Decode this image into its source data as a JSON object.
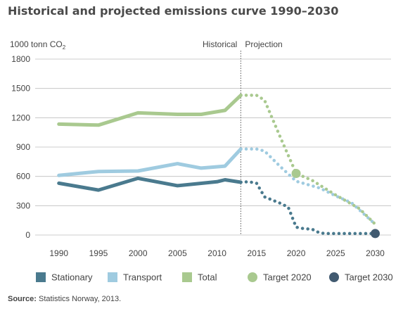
{
  "title": "Historical and projected emissions curve 1990–2030",
  "source_label": "Source:",
  "source_text": "Statistics Norway, 2013.",
  "chart_data": {
    "type": "line",
    "title": "Historical and projected emissions curve 1990–2030",
    "ylabel_main": "1000 tonn CO",
    "ylabel_sub": "2",
    "ylim": [
      0,
      1800
    ],
    "yticks": [
      0,
      300,
      600,
      900,
      1200,
      1500,
      1800
    ],
    "xlim": [
      1987,
      2032
    ],
    "xticks": [
      1990,
      1995,
      2000,
      2005,
      2010,
      2015,
      2020,
      2025,
      2030
    ],
    "grid": true,
    "divider_x": 2013,
    "divider_labels": {
      "left": "Historical",
      "right": "Projection"
    },
    "legend_position": "bottom",
    "colors": {
      "Stationary": "#4a7a8e",
      "Transport": "#9fcbe0",
      "Total": "#a9c98f",
      "Target 2020": "#a9c98f",
      "Target 2030": "#415a70"
    },
    "series": [
      {
        "name": "Stationary",
        "historical": [
          [
            1990,
            530
          ],
          [
            1995,
            460
          ],
          [
            2000,
            580
          ],
          [
            2005,
            505
          ],
          [
            2010,
            545
          ],
          [
            2011,
            565
          ],
          [
            2013,
            540
          ]
        ],
        "projection": [
          [
            2013,
            540
          ],
          [
            2014,
            545
          ],
          [
            2015,
            530
          ],
          [
            2016,
            390
          ],
          [
            2018,
            325
          ],
          [
            2019,
            285
          ],
          [
            2020,
            80
          ],
          [
            2021,
            65
          ],
          [
            2022,
            60
          ],
          [
            2023,
            20
          ],
          [
            2024,
            15
          ],
          [
            2027,
            15
          ],
          [
            2030,
            15
          ]
        ]
      },
      {
        "name": "Transport",
        "historical": [
          [
            1990,
            610
          ],
          [
            1995,
            650
          ],
          [
            2000,
            655
          ],
          [
            2005,
            730
          ],
          [
            2008,
            685
          ],
          [
            2011,
            705
          ],
          [
            2013,
            880
          ]
        ],
        "projection": [
          [
            2013,
            880
          ],
          [
            2015,
            880
          ],
          [
            2016,
            860
          ],
          [
            2018,
            700
          ],
          [
            2020,
            550
          ],
          [
            2023,
            480
          ],
          [
            2025,
            400
          ],
          [
            2027,
            330
          ],
          [
            2030,
            110
          ]
        ]
      },
      {
        "name": "Total",
        "historical": [
          [
            1990,
            1135
          ],
          [
            1995,
            1125
          ],
          [
            2000,
            1250
          ],
          [
            2005,
            1235
          ],
          [
            2008,
            1235
          ],
          [
            2011,
            1275
          ],
          [
            2013,
            1430
          ]
        ],
        "projection": [
          [
            2013,
            1430
          ],
          [
            2015,
            1430
          ],
          [
            2016,
            1380
          ],
          [
            2018,
            1000
          ],
          [
            2020,
            630
          ],
          [
            2022,
            560
          ],
          [
            2025,
            410
          ],
          [
            2028,
            270
          ],
          [
            2030,
            110
          ]
        ]
      }
    ],
    "targets": [
      {
        "name": "Target 2020",
        "x": 2020,
        "y": 630
      },
      {
        "name": "Target 2030",
        "x": 2030,
        "y": 15
      }
    ],
    "legend": [
      {
        "label": "Stationary",
        "shape": "square"
      },
      {
        "label": "Transport",
        "shape": "square"
      },
      {
        "label": "Total",
        "shape": "square"
      },
      {
        "label": "Target 2020",
        "shape": "circle"
      },
      {
        "label": "Target 2030",
        "shape": "circle"
      }
    ]
  }
}
